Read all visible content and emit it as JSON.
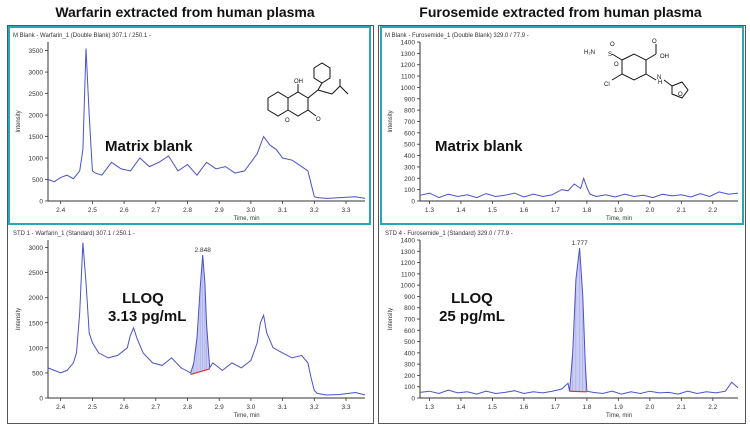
{
  "titles": {
    "left": "Warfarin extracted from human plasma",
    "right": "Furosemide extracted from human plasma"
  },
  "colors": {
    "trace": "#4a52c8",
    "fill": "#b9bdf0",
    "baseline": "#e03030",
    "highlight": "#2aa6b8",
    "axis": "#333333"
  },
  "chart_data": [
    {
      "type": "line",
      "header": "M Blank - Warfarin_1 (Double Blank) 307.1 / 250.1 -",
      "overlay": [
        "Matrix blank"
      ],
      "ylabel": "Intensity",
      "xlabel": "Time, min",
      "xlim": [
        2.36,
        3.36
      ],
      "ylim": [
        0,
        3700
      ],
      "xticks": [
        "2.4",
        "2.5",
        "2.6",
        "2.7",
        "2.8",
        "2.9",
        "3.0",
        "3.1",
        "3.2",
        "3.3"
      ],
      "yticks": [
        "0",
        "500",
        "1000",
        "1500",
        "2000",
        "2500",
        "3000",
        "3500"
      ],
      "series": [
        {
          "x": [
            2.36,
            2.38,
            2.4,
            2.42,
            2.44,
            2.46,
            2.47,
            2.48,
            2.49,
            2.5,
            2.51,
            2.53,
            2.56,
            2.59,
            2.62,
            2.65,
            2.68,
            2.71,
            2.74,
            2.77,
            2.8,
            2.83,
            2.86,
            2.89,
            2.92,
            2.95,
            2.98,
            3.0,
            3.02,
            3.04,
            3.06,
            3.08,
            3.1,
            3.13,
            3.16,
            3.18,
            3.19,
            3.2,
            3.21,
            3.24,
            3.28,
            3.33,
            3.36
          ],
          "y": [
            500,
            450,
            550,
            600,
            520,
            700,
            1200,
            3550,
            2000,
            700,
            650,
            600,
            900,
            750,
            700,
            1000,
            800,
            900,
            1050,
            700,
            850,
            600,
            900,
            750,
            800,
            650,
            700,
            900,
            1100,
            1500,
            1300,
            1200,
            1000,
            950,
            800,
            700,
            400,
            100,
            80,
            60,
            80,
            100,
            60
          ]
        }
      ],
      "molecule": "warfarin"
    },
    {
      "type": "line",
      "header": "M Blank - Furosemide_1 (Double Blank) 329.0 / 77.9 -",
      "overlay": [
        "Matrix blank"
      ],
      "ylabel": "Intensity",
      "xlabel": "Time, min",
      "xlim": [
        1.27,
        2.28
      ],
      "ylim": [
        0,
        1400
      ],
      "xticks": [
        "1.3",
        "1.4",
        "1.5",
        "1.6",
        "1.7",
        "1.8",
        "1.9",
        "2.0",
        "2.1",
        "2.2"
      ],
      "yticks": [
        "0",
        "100",
        "200",
        "300",
        "400",
        "500",
        "600",
        "700",
        "800",
        "900",
        "1000",
        "1100",
        "1200",
        "1300",
        "1400"
      ],
      "series": [
        {
          "x": [
            1.27,
            1.3,
            1.33,
            1.36,
            1.39,
            1.42,
            1.45,
            1.48,
            1.51,
            1.54,
            1.57,
            1.6,
            1.63,
            1.66,
            1.69,
            1.72,
            1.74,
            1.76,
            1.78,
            1.79,
            1.8,
            1.81,
            1.83,
            1.86,
            1.89,
            1.92,
            1.95,
            1.98,
            2.01,
            2.04,
            2.07,
            2.1,
            2.13,
            2.16,
            2.19,
            2.22,
            2.25,
            2.28
          ],
          "y": [
            50,
            70,
            30,
            60,
            40,
            55,
            30,
            65,
            40,
            50,
            70,
            35,
            60,
            40,
            55,
            100,
            90,
            150,
            110,
            200,
            120,
            60,
            40,
            55,
            35,
            60,
            40,
            50,
            30,
            60,
            45,
            55,
            35,
            65,
            40,
            80,
            60,
            70
          ]
        }
      ],
      "molecule": "furosemide"
    },
    {
      "type": "line",
      "header": "STD 1 - Warfarin_1 (Standard) 307.1 / 250.1 -",
      "overlay": [
        "LLOQ",
        "3.13 pg/mL"
      ],
      "ylabel": "Intensity",
      "xlabel": "Time, min",
      "xlim": [
        2.36,
        3.36
      ],
      "ylim": [
        0,
        3150
      ],
      "xticks": [
        "2.4",
        "2.5",
        "2.6",
        "2.7",
        "2.8",
        "2.9",
        "3.0",
        "3.1",
        "3.2",
        "3.3"
      ],
      "yticks": [
        "0",
        "500",
        "1000",
        "1500",
        "2000",
        "2500",
        "3000"
      ],
      "peak": {
        "label": "2.848",
        "x": 2.848,
        "from": 2.81,
        "to": 2.87,
        "base_from": 470,
        "base_to": 580
      },
      "series": [
        {
          "x": [
            2.36,
            2.38,
            2.4,
            2.42,
            2.44,
            2.45,
            2.46,
            2.47,
            2.48,
            2.49,
            2.5,
            2.52,
            2.55,
            2.58,
            2.61,
            2.62,
            2.63,
            2.64,
            2.66,
            2.69,
            2.72,
            2.75,
            2.78,
            2.81,
            2.82,
            2.83,
            2.84,
            2.848,
            2.855,
            2.86,
            2.87,
            2.88,
            2.91,
            2.94,
            2.97,
            3.0,
            3.02,
            3.03,
            3.04,
            3.05,
            3.07,
            3.1,
            3.13,
            3.16,
            3.18,
            3.19,
            3.2,
            3.21,
            3.24,
            3.28,
            3.33,
            3.36
          ],
          "y": [
            600,
            550,
            500,
            550,
            700,
            900,
            1700,
            3100,
            2300,
            1300,
            1100,
            900,
            800,
            850,
            1000,
            1250,
            1400,
            1200,
            900,
            700,
            650,
            800,
            600,
            500,
            700,
            1200,
            2200,
            2850,
            2300,
            1500,
            600,
            700,
            550,
            700,
            600,
            750,
            1100,
            1500,
            1650,
            1300,
            1000,
            900,
            800,
            850,
            700,
            400,
            150,
            90,
            60,
            70,
            110,
            60
          ]
        }
      ],
      "molecule": ""
    },
    {
      "type": "line",
      "header": "STD 4 - Furosemide_1 (Standard) 329.0 / 77.9 -",
      "overlay": [
        "LLOQ",
        "25 pg/mL"
      ],
      "ylabel": "Intensity",
      "xlabel": "Time, min",
      "xlim": [
        1.27,
        2.28
      ],
      "ylim": [
        0,
        1400
      ],
      "xticks": [
        "1.3",
        "1.4",
        "1.5",
        "1.6",
        "1.7",
        "1.8",
        "1.9",
        "2.0",
        "2.1",
        "2.2"
      ],
      "yticks": [
        "0",
        "100",
        "200",
        "300",
        "400",
        "500",
        "600",
        "700",
        "800",
        "900",
        "1000",
        "1100",
        "1200",
        "1300",
        "1400"
      ],
      "peak": {
        "label": "1.777",
        "x": 1.777,
        "from": 1.745,
        "to": 1.8,
        "base_from": 60,
        "base_to": 55
      },
      "series": [
        {
          "x": [
            1.27,
            1.3,
            1.33,
            1.36,
            1.39,
            1.42,
            1.45,
            1.48,
            1.51,
            1.54,
            1.57,
            1.6,
            1.63,
            1.66,
            1.69,
            1.72,
            1.74,
            1.745,
            1.755,
            1.765,
            1.777,
            1.787,
            1.795,
            1.8,
            1.82,
            1.85,
            1.88,
            1.91,
            1.94,
            1.97,
            2.0,
            2.03,
            2.06,
            2.09,
            2.12,
            2.15,
            2.18,
            2.21,
            2.24,
            2.26,
            2.28
          ],
          "y": [
            50,
            60,
            40,
            70,
            45,
            55,
            35,
            60,
            40,
            50,
            65,
            40,
            55,
            45,
            60,
            80,
            130,
            60,
            400,
            1050,
            1330,
            900,
            300,
            60,
            50,
            40,
            60,
            35,
            55,
            40,
            60,
            45,
            50,
            35,
            60,
            40,
            55,
            45,
            60,
            140,
            90
          ]
        }
      ],
      "molecule": ""
    }
  ]
}
